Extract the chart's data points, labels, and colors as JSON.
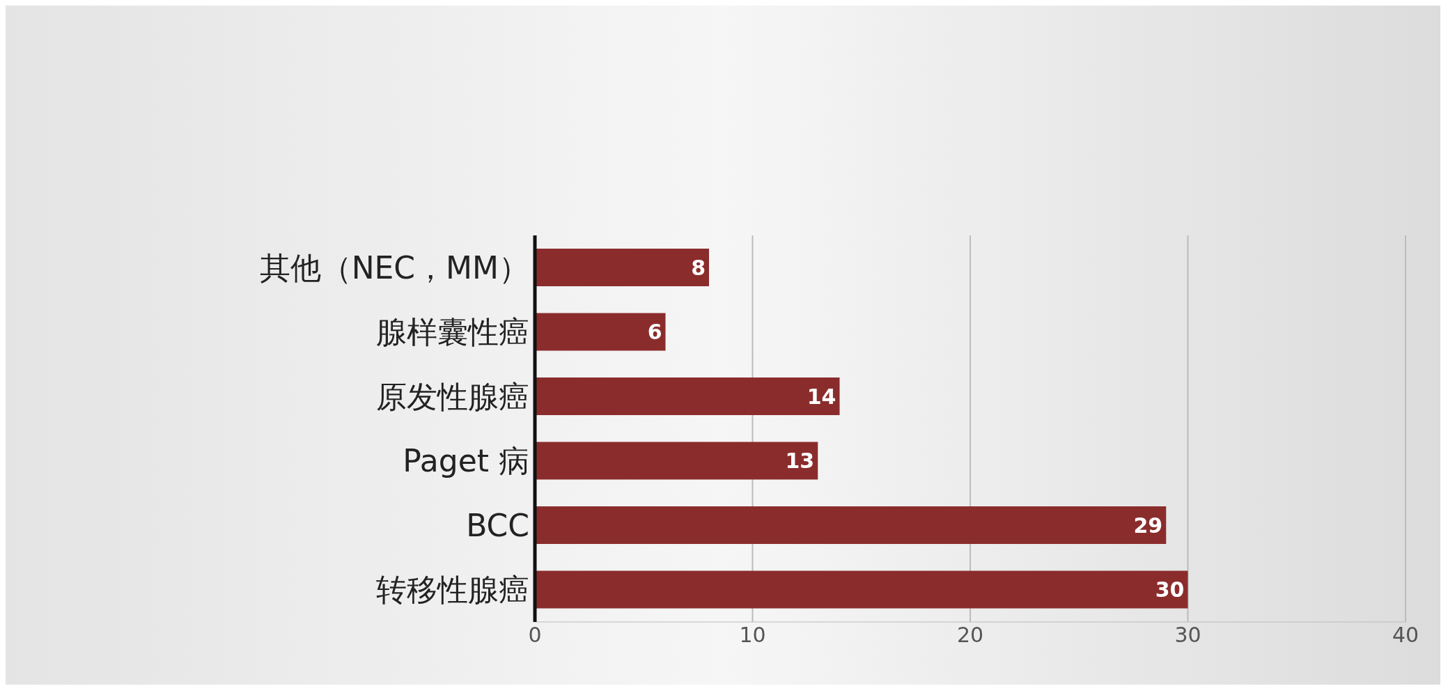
{
  "chart_data": {
    "type": "bar",
    "orientation": "horizontal",
    "categories": [
      "其他（NEC，MM）",
      "腺样囊性癌",
      "原发性腺癌",
      "Paget 病",
      "BCC",
      "转移性腺癌"
    ],
    "values": [
      8,
      6,
      14,
      13,
      29,
      30
    ],
    "color": "#8b2c2c",
    "xlim": [
      0,
      40
    ],
    "xticks": [
      0,
      10,
      20,
      30,
      40
    ],
    "grid": "x",
    "data_labels": true
  }
}
